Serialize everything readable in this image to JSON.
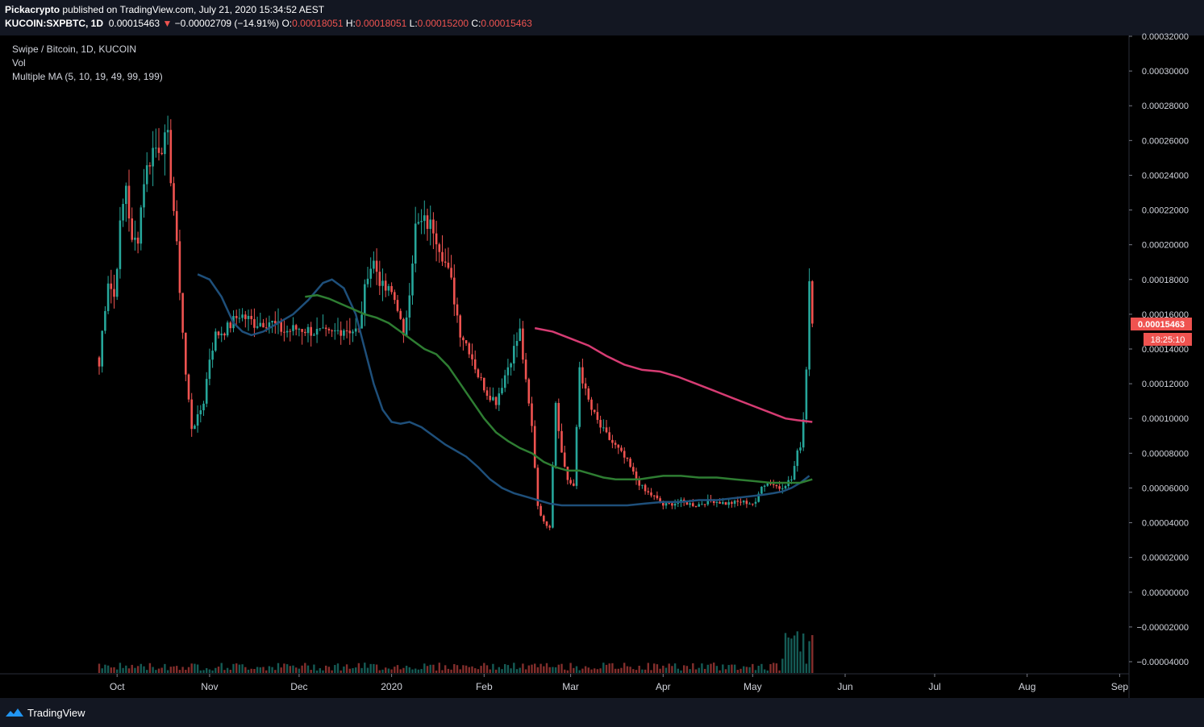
{
  "header": {
    "author": "Pickacrypto",
    "published": "published on TradingView.com, July 21, 2020 15:34:52 AEST",
    "symbol": "KUCOIN:SXPBTC, 1D",
    "last": "0.00015463",
    "change": "−0.00002709 (−14.91%)",
    "o_label": "O:",
    "o_value": "0.00018051",
    "h_label": "H:",
    "h_value": "0.00018051",
    "l_label": "L:",
    "l_value": "0.00015200",
    "c_label": "C:",
    "c_value": "0.00015463"
  },
  "legend": {
    "title": "Swipe / Bitcoin, 1D, KUCOIN",
    "vol": "Vol",
    "ma": "Multiple MA (5, 10, 19, 49, 99, 199)"
  },
  "price_tag": {
    "value": "0.00015463",
    "countdown": "18:25:10"
  },
  "footer": {
    "brand": "TradingView"
  },
  "colors": {
    "up": "#26a69a",
    "down": "#ef5350",
    "ma_blue": "#1e4f7a",
    "ma_green": "#2e7d32",
    "ma_pink": "#d63c73"
  },
  "chart_data": {
    "type": "candlestick",
    "y_ticks": [
      "0.00032000",
      "0.00030000",
      "0.00028000",
      "0.00026000",
      "0.00024000",
      "0.00022000",
      "0.00020000",
      "0.00018000",
      "0.00016000",
      "0.00014000",
      "0.00012000",
      "0.00010000",
      "0.00008000",
      "0.00006000",
      "0.00004000",
      "0.00002000",
      "0.00000000",
      "−0.00002000",
      "−0.00004000"
    ],
    "ylim": [
      -4e-05,
      0.00032
    ],
    "x_ticks": [
      {
        "label": "Oct",
        "day": 6
      },
      {
        "label": "Nov",
        "day": 37
      },
      {
        "label": "Dec",
        "day": 67
      },
      {
        "label": "2020",
        "day": 98
      },
      {
        "label": "Feb",
        "day": 129
      },
      {
        "label": "Mar",
        "day": 158
      },
      {
        "label": "Apr",
        "day": 189
      },
      {
        "label": "May",
        "day": 219
      },
      {
        "label": "Jun",
        "day": 250
      },
      {
        "label": "Jul",
        "day": 280
      },
      {
        "label": "Aug",
        "day": 311
      },
      {
        "label": "Sep",
        "day": 342
      }
    ],
    "close_anchors": [
      [
        0,
        0.00013
      ],
      [
        1,
        0.00015
      ],
      [
        3,
        0.00018
      ],
      [
        5,
        0.00017
      ],
      [
        7,
        0.00021
      ],
      [
        9,
        0.000235
      ],
      [
        11,
        0.0002
      ],
      [
        13,
        0.000205
      ],
      [
        15,
        0.000238
      ],
      [
        18,
        0.000255
      ],
      [
        21,
        0.000258
      ],
      [
        23,
        0.00026
      ],
      [
        25,
        0.00022
      ],
      [
        27,
        0.000175
      ],
      [
        29,
        0.000125
      ],
      [
        31,
        9.5e-05
      ],
      [
        33,
        0.0001
      ],
      [
        35,
        0.00011
      ],
      [
        37,
        0.000135
      ],
      [
        39,
        0.000148
      ],
      [
        43,
        0.000152
      ],
      [
        47,
        0.00016
      ],
      [
        52,
        0.000155
      ],
      [
        57,
        0.000156
      ],
      [
        62,
        0.00015
      ],
      [
        67,
        0.000152
      ],
      [
        72,
        0.00015
      ],
      [
        77,
        0.000148
      ],
      [
        82,
        0.000152
      ],
      [
        87,
        0.00015
      ],
      [
        90,
        0.000185
      ],
      [
        92,
        0.00019
      ],
      [
        95,
        0.000175
      ],
      [
        98,
        0.000172
      ],
      [
        100,
        0.000165
      ],
      [
        102,
        0.000145
      ],
      [
        104,
        0.000175
      ],
      [
        106,
        0.00021
      ],
      [
        109,
        0.000213
      ],
      [
        112,
        0.00021
      ],
      [
        115,
        0.000195
      ],
      [
        118,
        0.000178
      ],
      [
        121,
        0.00015
      ],
      [
        124,
        0.00014
      ],
      [
        127,
        0.000125
      ],
      [
        130,
        0.000115
      ],
      [
        133,
        0.00011
      ],
      [
        136,
        0.000125
      ],
      [
        139,
        0.00014
      ],
      [
        141,
        0.00015
      ],
      [
        143,
        0.00012
      ],
      [
        145,
        9.5e-05
      ],
      [
        147,
        5e-05
      ],
      [
        149,
        4e-05
      ],
      [
        151,
        3.8e-05
      ],
      [
        153,
        0.00011
      ],
      [
        155,
        8e-05
      ],
      [
        157,
        6.5e-05
      ],
      [
        159,
        6e-05
      ],
      [
        161,
        0.00013
      ],
      [
        163,
        0.000115
      ],
      [
        165,
        0.000105
      ],
      [
        168,
        9.5e-05
      ],
      [
        171,
        8.8e-05
      ],
      [
        174,
        8.2e-05
      ],
      [
        177,
        7.5e-05
      ],
      [
        180,
        6.5e-05
      ],
      [
        183,
        5.8e-05
      ],
      [
        186,
        5.5e-05
      ],
      [
        189,
        5e-05
      ],
      [
        195,
        5.2e-05
      ],
      [
        200,
        5e-05
      ],
      [
        205,
        5.3e-05
      ],
      [
        210,
        5.1e-05
      ],
      [
        215,
        5.2e-05
      ],
      [
        220,
        5.1e-05
      ],
      [
        222,
        6.2e-05
      ],
      [
        225,
        6.3e-05
      ],
      [
        228,
        6e-05
      ],
      [
        232,
        6.5e-05
      ],
      [
        234,
        8e-05
      ],
      [
        235,
        8.5e-05
      ],
      [
        236,
        0.0001
      ],
      [
        237,
        0.00013
      ],
      [
        238,
        0.00018
      ],
      [
        239,
        0.000155
      ]
    ],
    "ma_series": [
      {
        "color_key": "ma_blue",
        "points": [
          [
            33,
            0.000183
          ],
          [
            37,
            0.00018
          ],
          [
            41,
            0.00017
          ],
          [
            45,
            0.000155
          ],
          [
            48,
            0.00015
          ],
          [
            51,
            0.000148
          ],
          [
            55,
            0.00015
          ],
          [
            60,
            0.000155
          ],
          [
            65,
            0.00016
          ],
          [
            70,
            0.000168
          ],
          [
            75,
            0.000178
          ],
          [
            78,
            0.00018
          ],
          [
            82,
            0.000175
          ],
          [
            86,
            0.00016
          ],
          [
            89,
            0.00014
          ],
          [
            92,
            0.00012
          ],
          [
            95,
            0.000105
          ],
          [
            98,
            9.8e-05
          ],
          [
            101,
            9.7e-05
          ],
          [
            104,
            9.8e-05
          ],
          [
            108,
            9.5e-05
          ],
          [
            112,
            9e-05
          ],
          [
            116,
            8.5e-05
          ],
          [
            119,
            8.2e-05
          ],
          [
            123,
            7.8e-05
          ],
          [
            127,
            7.2e-05
          ],
          [
            131,
            6.5e-05
          ],
          [
            135,
            6e-05
          ],
          [
            139,
            5.7e-05
          ],
          [
            143,
            5.5e-05
          ],
          [
            147,
            5.3e-05
          ],
          [
            151,
            5.1e-05
          ],
          [
            155,
            5e-05
          ],
          [
            159,
            5e-05
          ],
          [
            165,
            5e-05
          ],
          [
            171,
            5e-05
          ],
          [
            177,
            5e-05
          ],
          [
            183,
            5.1e-05
          ],
          [
            189,
            5.2e-05
          ],
          [
            195,
            5.2e-05
          ],
          [
            201,
            5.3e-05
          ],
          [
            207,
            5.3e-05
          ],
          [
            212,
            5.4e-05
          ],
          [
            217,
            5.5e-05
          ],
          [
            222,
            5.6e-05
          ],
          [
            226,
            5.7e-05
          ],
          [
            229,
            5.8e-05
          ],
          [
            232,
            6e-05
          ],
          [
            235,
            6.3e-05
          ],
          [
            238,
            6.7e-05
          ]
        ]
      },
      {
        "color_key": "ma_green",
        "points": [
          [
            69,
            0.00017
          ],
          [
            73,
            0.000171
          ],
          [
            77,
            0.000169
          ],
          [
            81,
            0.000166
          ],
          [
            85,
            0.000163
          ],
          [
            89,
            0.00016
          ],
          [
            93,
            0.000158
          ],
          [
            97,
            0.000155
          ],
          [
            101,
            0.00015
          ],
          [
            105,
            0.000145
          ],
          [
            109,
            0.00014
          ],
          [
            113,
            0.000137
          ],
          [
            117,
            0.00013
          ],
          [
            121,
            0.00012
          ],
          [
            125,
            0.00011
          ],
          [
            129,
            0.0001
          ],
          [
            133,
            9.2e-05
          ],
          [
            137,
            8.7e-05
          ],
          [
            141,
            8.3e-05
          ],
          [
            145,
            8e-05
          ],
          [
            149,
            7.5e-05
          ],
          [
            153,
            7.2e-05
          ],
          [
            157,
            7e-05
          ],
          [
            161,
            7e-05
          ],
          [
            165,
            6.8e-05
          ],
          [
            169,
            6.6e-05
          ],
          [
            173,
            6.5e-05
          ],
          [
            177,
            6.5e-05
          ],
          [
            181,
            6.5e-05
          ],
          [
            185,
            6.6e-05
          ],
          [
            189,
            6.7e-05
          ],
          [
            195,
            6.7e-05
          ],
          [
            201,
            6.6e-05
          ],
          [
            207,
            6.6e-05
          ],
          [
            213,
            6.5e-05
          ],
          [
            219,
            6.4e-05
          ],
          [
            225,
            6.3e-05
          ],
          [
            231,
            6.3e-05
          ],
          [
            235,
            6.3e-05
          ],
          [
            239,
            6.5e-05
          ]
        ]
      },
      {
        "color_key": "ma_pink",
        "points": [
          [
            146,
            0.000152
          ],
          [
            152,
            0.00015
          ],
          [
            158,
            0.000146
          ],
          [
            164,
            0.000142
          ],
          [
            170,
            0.000136
          ],
          [
            176,
            0.000131
          ],
          [
            182,
            0.000128
          ],
          [
            188,
            0.000127
          ],
          [
            194,
            0.000124
          ],
          [
            200,
            0.00012
          ],
          [
            206,
            0.000116
          ],
          [
            212,
            0.000112
          ],
          [
            218,
            0.000108
          ],
          [
            224,
            0.000104
          ],
          [
            230,
            0.0001
          ],
          [
            234,
            9.9e-05
          ],
          [
            239,
            9.8e-05
          ]
        ]
      }
    ]
  }
}
